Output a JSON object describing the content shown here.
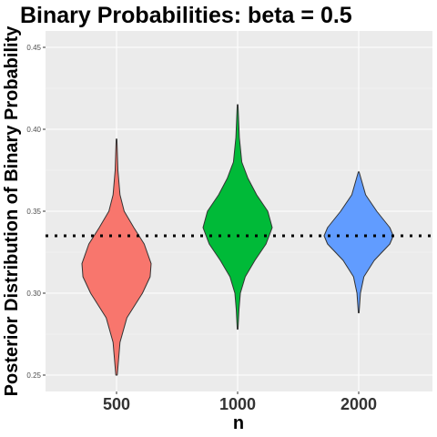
{
  "chart_data": {
    "type": "violin",
    "title": "Binary Probabilities: beta = 0.5",
    "xlabel": "n",
    "ylabel": "Posterior Distribution of Binary Probability",
    "categories": [
      "500",
      "1000",
      "2000"
    ],
    "colors": [
      "#F8766D",
      "#00BA38",
      "#619CFF"
    ],
    "ylim": [
      0.24,
      0.46
    ],
    "yticks": [
      0.25,
      0.3,
      0.35,
      0.4,
      0.45
    ],
    "ytick_labels": [
      "0.25",
      "0.30",
      "0.35",
      "0.40",
      "0.45"
    ],
    "reference_line": {
      "y": 0.335,
      "style": "dotted"
    },
    "series": [
      {
        "category": "500",
        "min": 0.25,
        "max": 0.394,
        "density": [
          [
            0.25,
            0.02
          ],
          [
            0.27,
            0.1
          ],
          [
            0.285,
            0.3
          ],
          [
            0.3,
            0.75
          ],
          [
            0.31,
            0.97
          ],
          [
            0.318,
            1.0
          ],
          [
            0.33,
            0.8
          ],
          [
            0.34,
            0.5
          ],
          [
            0.35,
            0.22
          ],
          [
            0.36,
            0.1
          ],
          [
            0.375,
            0.04
          ],
          [
            0.394,
            0.01
          ]
        ]
      },
      {
        "category": "1000",
        "min": 0.278,
        "max": 0.415,
        "density": [
          [
            0.278,
            0.01
          ],
          [
            0.29,
            0.04
          ],
          [
            0.3,
            0.08
          ],
          [
            0.31,
            0.22
          ],
          [
            0.32,
            0.5
          ],
          [
            0.33,
            0.82
          ],
          [
            0.34,
            1.0
          ],
          [
            0.35,
            0.87
          ],
          [
            0.36,
            0.55
          ],
          [
            0.37,
            0.3
          ],
          [
            0.38,
            0.12
          ],
          [
            0.395,
            0.05
          ],
          [
            0.415,
            0.01
          ]
        ]
      },
      {
        "category": "2000",
        "min": 0.288,
        "max": 0.374,
        "density": [
          [
            0.288,
            0.01
          ],
          [
            0.3,
            0.05
          ],
          [
            0.31,
            0.15
          ],
          [
            0.32,
            0.45
          ],
          [
            0.33,
            0.9
          ],
          [
            0.335,
            1.0
          ],
          [
            0.34,
            0.9
          ],
          [
            0.35,
            0.52
          ],
          [
            0.36,
            0.2
          ],
          [
            0.374,
            0.01
          ]
        ]
      }
    ],
    "grid": true
  }
}
